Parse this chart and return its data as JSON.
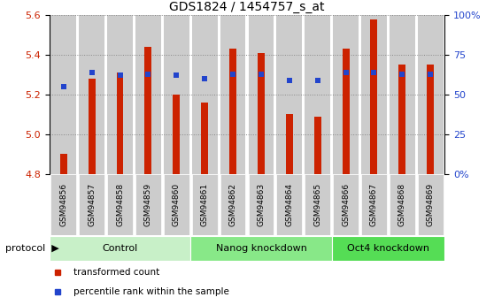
{
  "title": "GDS1824 / 1454757_s_at",
  "categories": [
    "GSM94856",
    "GSM94857",
    "GSM94858",
    "GSM94859",
    "GSM94860",
    "GSM94861",
    "GSM94862",
    "GSM94863",
    "GSM94864",
    "GSM94865",
    "GSM94866",
    "GSM94867",
    "GSM94868",
    "GSM94869"
  ],
  "red_values": [
    4.9,
    5.28,
    5.31,
    5.44,
    5.2,
    5.16,
    5.43,
    5.41,
    5.1,
    5.09,
    5.43,
    5.58,
    5.35,
    5.35
  ],
  "blue_percentile": [
    55,
    64,
    62,
    63,
    62,
    60,
    63,
    63,
    59,
    59,
    64,
    64,
    63,
    63
  ],
  "ylim_left": [
    4.8,
    5.6
  ],
  "ylim_right": [
    0,
    100
  ],
  "yticks_left": [
    4.8,
    5.0,
    5.2,
    5.4,
    5.6
  ],
  "yticks_right": [
    0,
    25,
    50,
    75,
    100
  ],
  "ytick_labels_right": [
    "0%",
    "25",
    "50",
    "75",
    "100%"
  ],
  "red_color": "#cc2200",
  "blue_color": "#2244cc",
  "col_bg": "#cccccc",
  "group_defs": [
    {
      "start": 0,
      "end": 4,
      "label": "Control",
      "color": "#c8f0c8"
    },
    {
      "start": 5,
      "end": 9,
      "label": "Nanog knockdown",
      "color": "#88e888"
    },
    {
      "start": 10,
      "end": 13,
      "label": "Oct4 knockdown",
      "color": "#55dd55"
    }
  ],
  "legend_items": [
    {
      "label": "transformed count",
      "color": "#cc2200"
    },
    {
      "label": "percentile rank within the sample",
      "color": "#2244cc"
    }
  ],
  "dotted_line_color": "#888888",
  "figsize": [
    5.58,
    3.45
  ],
  "dpi": 100
}
